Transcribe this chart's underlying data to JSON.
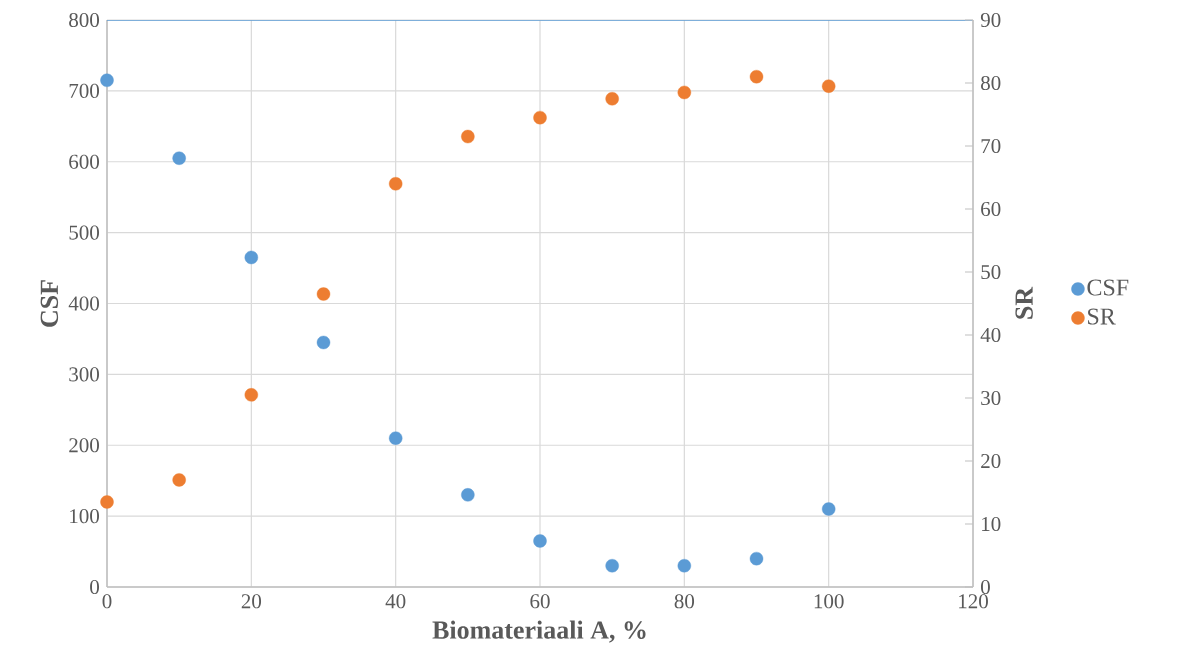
{
  "chart_data": {
    "type": "scatter",
    "xlabel": "Biomateriaali A, %",
    "ylabel": "CSF",
    "y2label": "SR",
    "x": [
      0,
      10,
      20,
      30,
      40,
      50,
      60,
      70,
      80,
      90,
      100
    ],
    "series": [
      {
        "name": "CSF",
        "color": "#5b9bd5",
        "values": [
          715,
          605,
          465,
          345,
          210,
          130,
          65,
          30,
          30,
          40,
          110
        ]
      },
      {
        "name": "SR",
        "color": "#ed7d31",
        "axis": "y2",
        "values": [
          13.5,
          17,
          30.5,
          46.5,
          64,
          71.5,
          74.5,
          77.5,
          78.5,
          81,
          79.5
        ]
      }
    ],
    "xlim": [
      0,
      120
    ],
    "xticks": [
      0,
      20,
      40,
      60,
      80,
      100,
      120
    ],
    "ylim": [
      0,
      800
    ],
    "yticks": [
      0,
      100,
      200,
      300,
      400,
      500,
      600,
      700,
      800
    ],
    "y2lim": [
      0,
      90
    ],
    "y2ticks": [
      0,
      10,
      20,
      30,
      40,
      50,
      60,
      70,
      80,
      90
    ],
    "grid": true,
    "legend": "right",
    "marker": "circle"
  }
}
